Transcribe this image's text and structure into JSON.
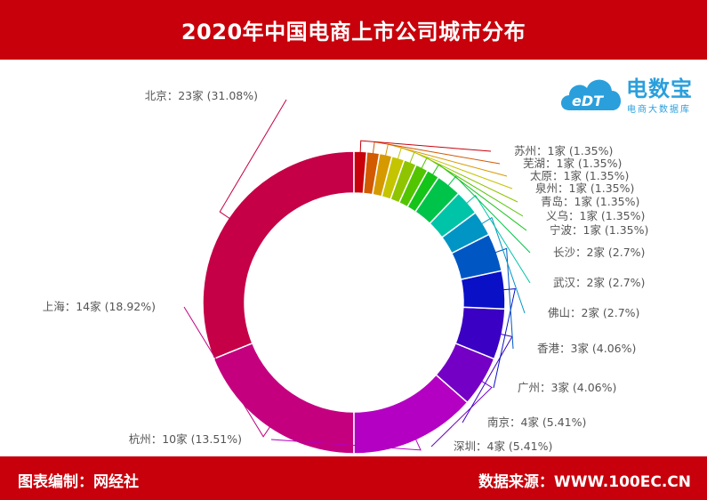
{
  "header": {
    "title": "2020年中国电商上市公司城市分布"
  },
  "logo": {
    "mark": "eDT",
    "brand": "电数宝",
    "tagline": "电商大数据库"
  },
  "footer": {
    "left": "图表编制：网经社",
    "right": "数据来源：WWW.100EC.CN"
  },
  "colors": {
    "banner": "#c8000b",
    "logo": "#2a9fdc"
  },
  "chart_data": {
    "type": "pie",
    "style": "donut",
    "unit": "家",
    "slices": [
      {
        "name": "北京",
        "value": 23,
        "percent": "31.08%",
        "label": "北京：23家 (31.08%)",
        "color": "#c50046"
      },
      {
        "name": "上海",
        "value": 14,
        "percent": "18.92%",
        "label": "上海：14家 (18.92%)",
        "color": "#c4007f"
      },
      {
        "name": "杭州",
        "value": 10,
        "percent": "13.51%",
        "label": "杭州：10家 (13.51%)",
        "color": "#b400c2"
      },
      {
        "name": "深圳",
        "value": 4,
        "percent": "5.41%",
        "label": "深圳：4家 (5.41%)",
        "color": "#7300c4"
      },
      {
        "name": "南京",
        "value": 4,
        "percent": "5.41%",
        "label": "南京：4家 (5.41%)",
        "color": "#3a00c4"
      },
      {
        "name": "广州",
        "value": 3,
        "percent": "4.06%",
        "label": "广州：3家 (4.06%)",
        "color": "#0a10c6"
      },
      {
        "name": "香港",
        "value": 3,
        "percent": "4.06%",
        "label": "香港：3家 (4.06%)",
        "color": "#0057c4"
      },
      {
        "name": "佛山",
        "value": 2,
        "percent": "2.7%",
        "label": "佛山：2家 (2.7%)",
        "color": "#0095c4"
      },
      {
        "name": "武汉",
        "value": 2,
        "percent": "2.7%",
        "label": "武汉：2家 (2.7%)",
        "color": "#00c4a8"
      },
      {
        "name": "长沙",
        "value": 2,
        "percent": "2.7%",
        "label": "长沙：2家 (2.7%)",
        "color": "#00c44a"
      },
      {
        "name": "宁波",
        "value": 1,
        "percent": "1.35%",
        "label": "宁波：1家 (1.35%)",
        "color": "#14c418"
      },
      {
        "name": "义乌",
        "value": 1,
        "percent": "1.35%",
        "label": "义乌：1家 (1.35%)",
        "color": "#52c400"
      },
      {
        "name": "青岛",
        "value": 1,
        "percent": "1.35%",
        "label": "青岛：1家 (1.35%)",
        "color": "#8ec400"
      },
      {
        "name": "泉州",
        "value": 1,
        "percent": "1.35%",
        "label": "泉州：1家 (1.35%)",
        "color": "#c4c400"
      },
      {
        "name": "太原",
        "value": 1,
        "percent": "1.35%",
        "label": "太原：1家 (1.35%)",
        "color": "#d69a00"
      },
      {
        "name": "芜湖",
        "value": 1,
        "percent": "1.35%",
        "label": "芜湖：1家 (1.35%)",
        "color": "#d25a00"
      },
      {
        "name": "苏州",
        "value": 1,
        "percent": "1.35%",
        "label": "苏州：1家 (1.35%)",
        "color": "#c8000b"
      }
    ]
  }
}
